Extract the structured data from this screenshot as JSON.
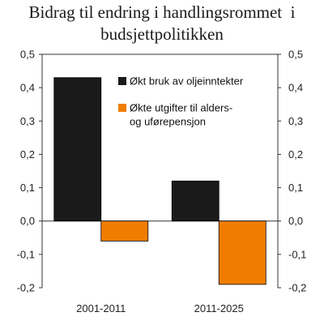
{
  "chart_data": {
    "type": "bar",
    "title_lines": [
      "Bidrag til endring i handlingsrommet  i",
      "budsjettpolitikken"
    ],
    "categories": [
      "2001-2011",
      "2011-2025"
    ],
    "series": [
      {
        "name": "Økt bruk av oljeinntekter",
        "values": [
          0.43,
          0.12
        ],
        "color": "#1a1a1a"
      },
      {
        "name": "Økte utgifter til alders- og uførepensjon",
        "values": [
          -0.06,
          -0.19
        ],
        "color": "#f07d00"
      }
    ],
    "ylim": [
      -0.2,
      0.5
    ],
    "yticks": [
      0.5,
      0.4,
      0.3,
      0.2,
      0.1,
      0.0,
      -0.1,
      -0.2
    ],
    "ytick_labels": [
      "0,5",
      "0,4",
      "0,3",
      "0,2",
      "0,1",
      "0,0",
      "-0,1",
      "-0,2"
    ],
    "axes": "left-and-right",
    "grid": false,
    "legend_position": "top-right"
  }
}
